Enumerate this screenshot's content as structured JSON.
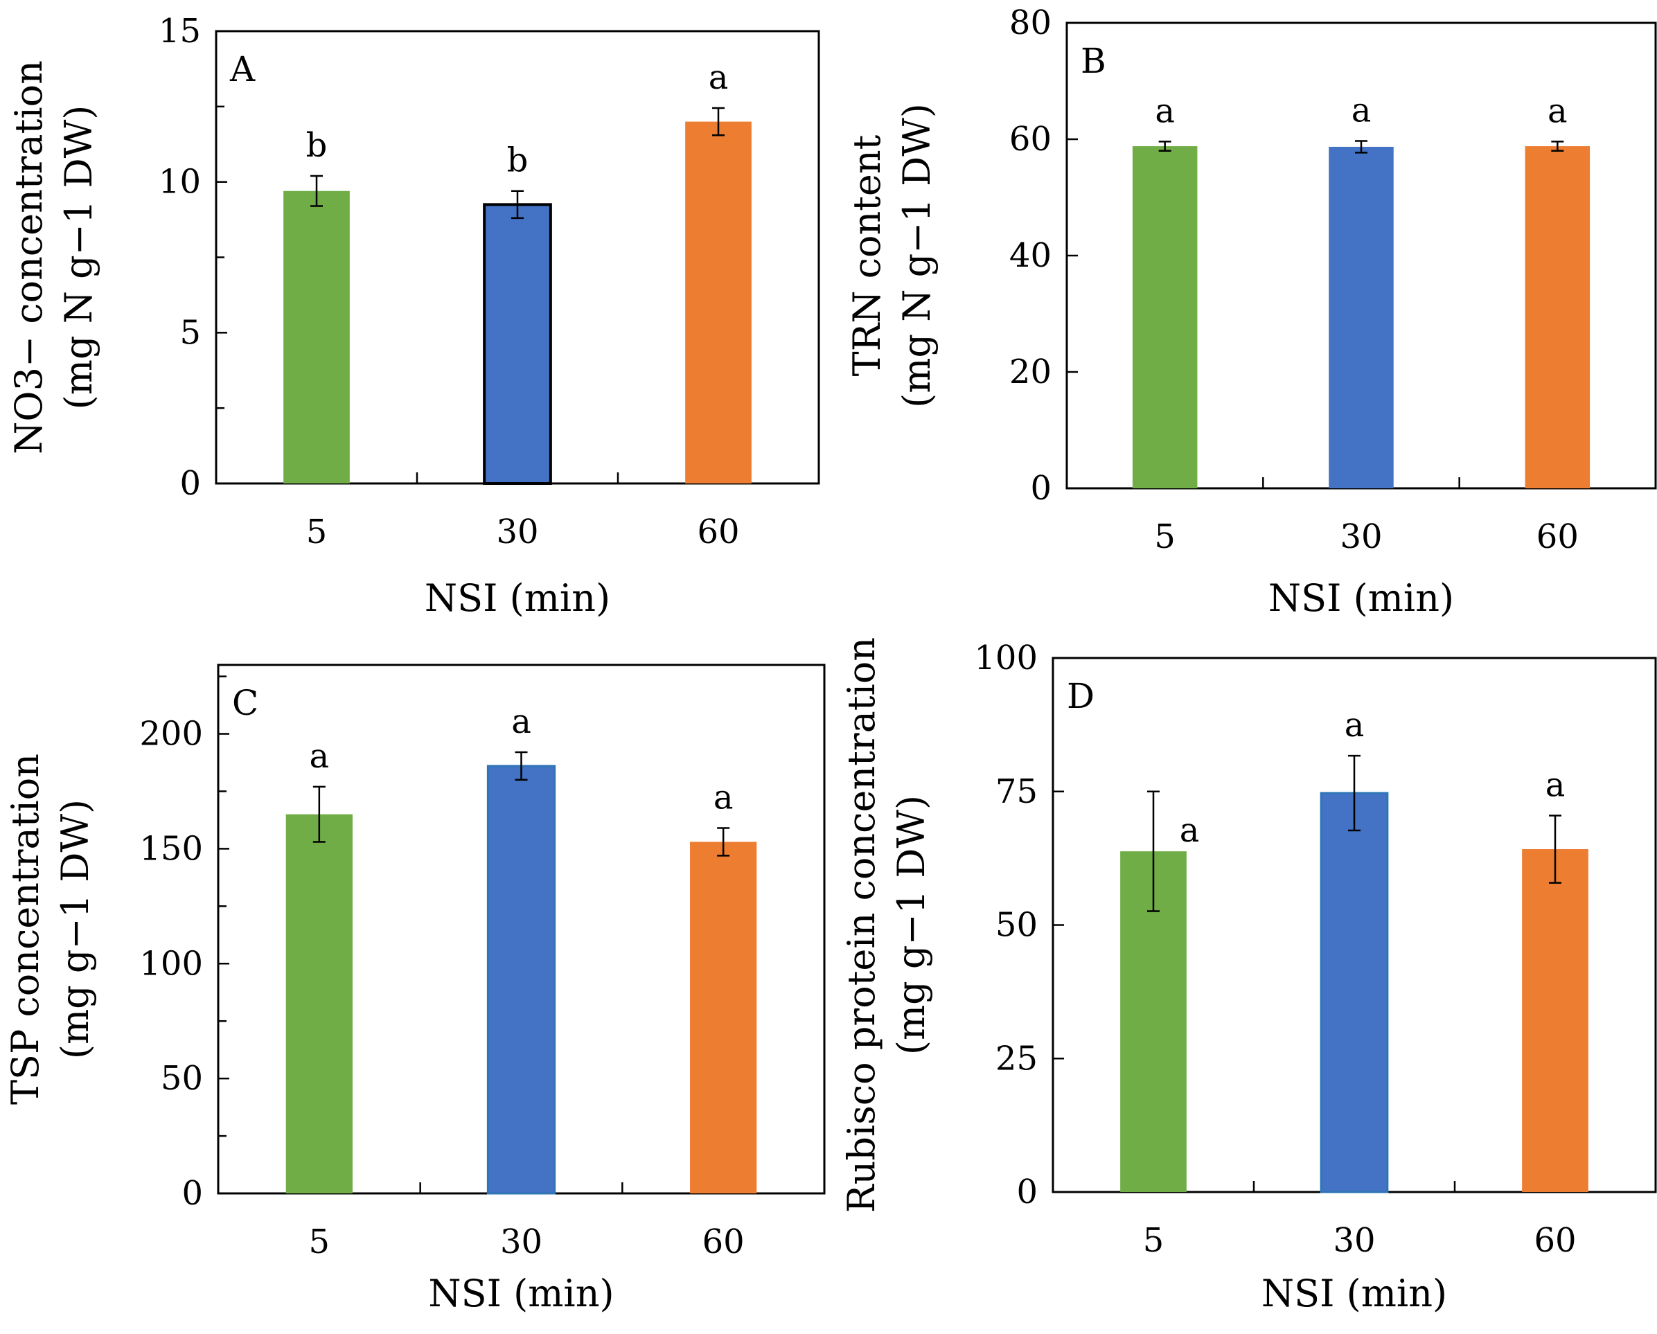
{
  "colors": {
    "green": "#70AD47",
    "blue": "#4472C4",
    "orange": "#ED7D31",
    "axis": "#000000"
  },
  "chart_data": [
    {
      "panel": "A",
      "type": "bar",
      "categories": [
        "5",
        "30",
        "60"
      ],
      "values": [
        9.7,
        9.25,
        12.0
      ],
      "errors": [
        0.5,
        0.45,
        0.45
      ],
      "significance": [
        "b",
        "b",
        "a"
      ],
      "bar_colors": [
        "#70AD47",
        "#4472C4",
        "#ED7D31"
      ],
      "xlabel": "NSI (min)",
      "ylabel_line1": "NO3− concentration",
      "ylabel_line2": "(mg N g−1 DW)",
      "ylim": [
        0,
        15
      ],
      "yticks": [
        0,
        5,
        10,
        15
      ],
      "minor_step": 2.5
    },
    {
      "panel": "B",
      "type": "bar",
      "categories": [
        "5",
        "30",
        "60"
      ],
      "values": [
        58.8,
        58.7,
        58.8
      ],
      "errors": [
        0.8,
        1.0,
        0.8
      ],
      "significance": [
        "a",
        "a",
        "a"
      ],
      "bar_colors": [
        "#70AD47",
        "#4472C4",
        "#ED7D31"
      ],
      "xlabel": "NSI (min)",
      "ylabel_line1": "TRN content",
      "ylabel_line2": "(mg N g−1 DW)",
      "ylim": [
        0,
        80
      ],
      "yticks": [
        0,
        20,
        40,
        60,
        80
      ],
      "minor_step": null
    },
    {
      "panel": "C",
      "type": "bar",
      "categories": [
        "5",
        "30",
        "60"
      ],
      "values": [
        165,
        186,
        153
      ],
      "errors": [
        12,
        6,
        6
      ],
      "significance": [
        "a",
        "a",
        "a"
      ],
      "bar_colors": [
        "#70AD47",
        "#4472C4",
        "#ED7D31"
      ],
      "xlabel": "NSI (min)",
      "ylabel_line1": "TSP concentration",
      "ylabel_line2": "(mg g−1 DW)",
      "ylim": [
        0,
        230
      ],
      "yticks": [
        0,
        50,
        100,
        150,
        200
      ],
      "minor_step": 25
    },
    {
      "panel": "D",
      "type": "bar",
      "categories": [
        "5",
        "30",
        "60"
      ],
      "values": [
        63.8,
        74.7,
        64.2
      ],
      "errors": [
        11.2,
        7.0,
        6.3
      ],
      "significance": [
        "a",
        "a",
        "a"
      ],
      "bar_colors": [
        "#70AD47",
        "#4472C4",
        "#ED7D31"
      ],
      "xlabel": "NSI (min)",
      "ylabel_line1": "Rubisco protein concentration",
      "ylabel_line2": "(mg g−1 DW)",
      "ylim": [
        0,
        100
      ],
      "yticks": [
        0,
        25,
        50,
        75,
        100
      ],
      "minor_step": null
    }
  ]
}
